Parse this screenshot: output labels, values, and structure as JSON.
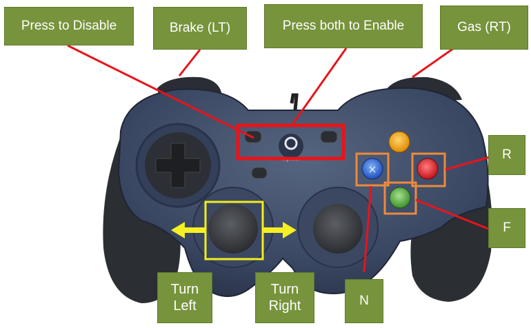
{
  "labels": {
    "press_to_disable": "Press to Disable",
    "brake": "Brake (LT)",
    "press_both_to_enable": "Press both to Enable",
    "gas": "Gas (RT)",
    "r": "R",
    "f": "F",
    "n": "N",
    "turn_left_line1": "Turn",
    "turn_left_line2": "Left",
    "turn_right_line1": "Turn",
    "turn_right_line2": "Right"
  },
  "gamepad": {
    "brand_text": "logitech"
  },
  "colors": {
    "label_fill": "#77933c",
    "callout_line": "#e8141a",
    "highlight_red": "#e8141a",
    "highlight_yellow": "#f2ee1c",
    "highlight_orange": "#ee8a3c",
    "arrow_yellow": "#f5ef23",
    "controller_body": "#3e4b66"
  }
}
